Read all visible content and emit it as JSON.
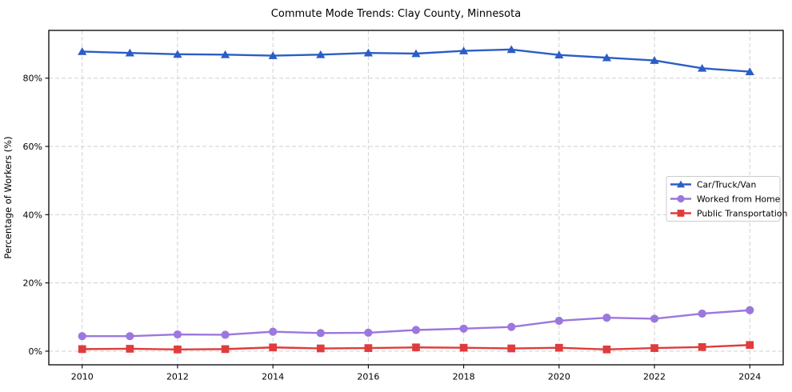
{
  "chart_data": {
    "type": "line",
    "title": "Commute Mode Trends: Clay County, Minnesota",
    "xlabel": "",
    "ylabel": "Percentage of Workers (%)",
    "x": [
      2010,
      2011,
      2012,
      2013,
      2014,
      2015,
      2016,
      2017,
      2018,
      2019,
      2020,
      2021,
      2022,
      2023,
      2024
    ],
    "x_ticks": [
      2010,
      2012,
      2014,
      2016,
      2018,
      2020,
      2022,
      2024
    ],
    "x_tick_labels": [
      "2010",
      "2012",
      "2014",
      "2016",
      "2018",
      "2020",
      "2022",
      "2024"
    ],
    "y_ticks": [
      0,
      20,
      40,
      60,
      80
    ],
    "y_tick_labels": [
      "0%",
      "20%",
      "40%",
      "60%",
      "80%"
    ],
    "xlim": [
      2009.3,
      2024.7
    ],
    "ylim": [
      -4,
      94
    ],
    "grid": "dashed light-gray gridlines on both axes at labeled ticks",
    "legend_position": "center right",
    "series": [
      {
        "name": "Car/Truck/Van",
        "color": "#2b5ec5",
        "marker": "triangle",
        "values": [
          87.8,
          87.4,
          87.0,
          86.9,
          86.6,
          86.9,
          87.4,
          87.2,
          88.0,
          88.4,
          86.8,
          86.0,
          85.2,
          82.9,
          81.9
        ]
      },
      {
        "name": "Worked from Home",
        "color": "#9c77dd",
        "marker": "circle",
        "values": [
          4.4,
          4.4,
          4.9,
          4.8,
          5.7,
          5.3,
          5.4,
          6.2,
          6.6,
          7.1,
          8.9,
          9.8,
          9.5,
          11.0,
          12.0
        ]
      },
      {
        "name": "Public Transportation",
        "color": "#e03c3c",
        "marker": "square",
        "values": [
          0.6,
          0.7,
          0.5,
          0.6,
          1.1,
          0.8,
          0.9,
          1.1,
          1.0,
          0.8,
          1.0,
          0.5,
          0.9,
          1.2,
          1.8
        ]
      }
    ],
    "colors": {
      "grid": "#c9c9c9",
      "spine": "#000000",
      "text": "#000000",
      "legend_border": "#cccccc",
      "background": "#ffffff"
    }
  }
}
